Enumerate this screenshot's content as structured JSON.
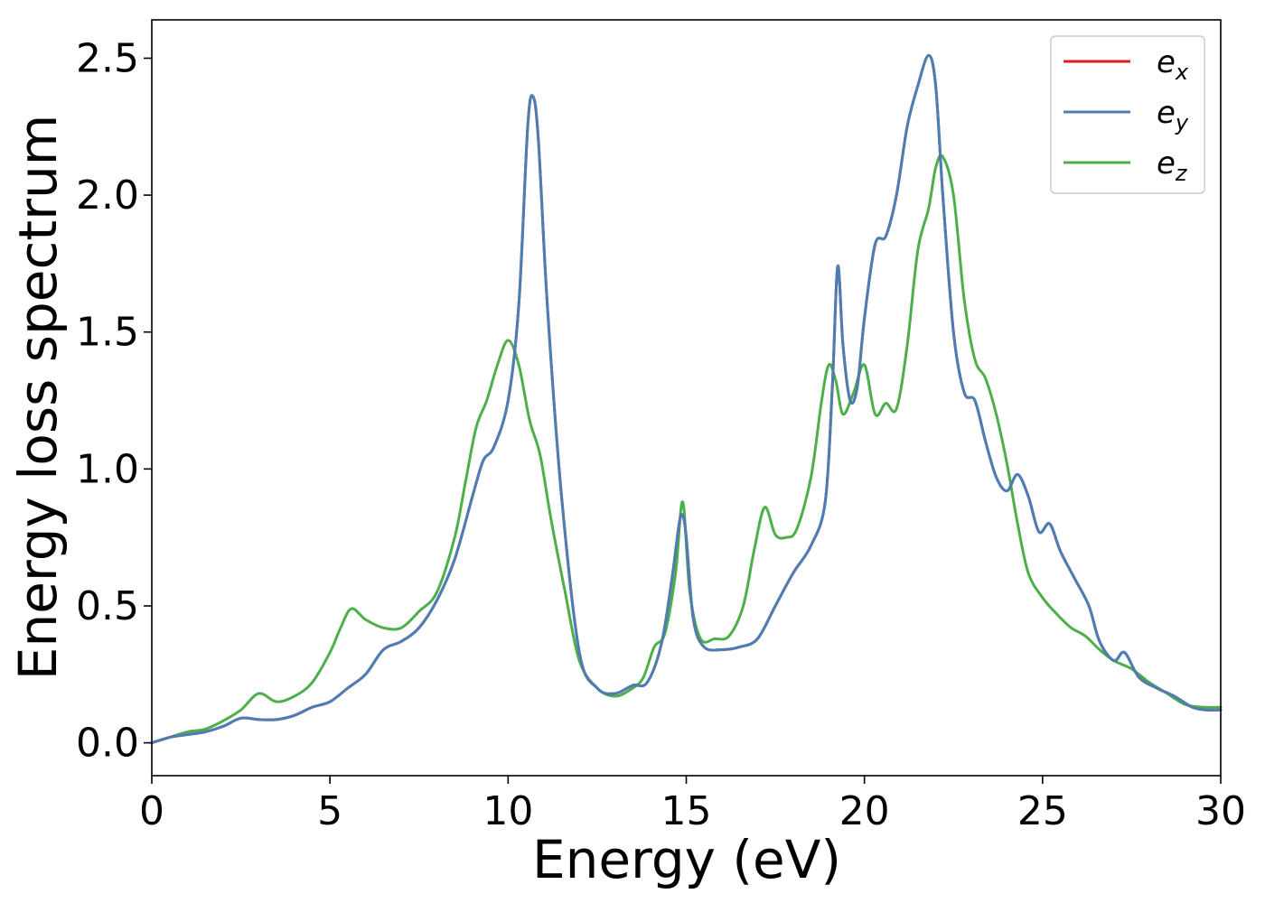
{
  "chart_data": {
    "type": "line",
    "xlabel": "Energy (eV)",
    "ylabel": "Energy loss spectrum",
    "xlim": [
      0,
      30
    ],
    "ylim": [
      -0.12,
      2.64
    ],
    "xticks": [
      0,
      5,
      10,
      15,
      20,
      25,
      30
    ],
    "xtick_labels": [
      "0",
      "5",
      "10",
      "15",
      "20",
      "25",
      "30"
    ],
    "yticks": [
      0.0,
      0.5,
      1.0,
      1.5,
      2.0,
      2.5
    ],
    "ytick_labels": [
      "0.0",
      "0.5",
      "1.0",
      "1.5",
      "2.0",
      "2.5"
    ],
    "grid": false,
    "legend_position": "top-right",
    "series": [
      {
        "name": "e_x",
        "label_base": "e",
        "label_sub": "x",
        "color": "#e41a1c",
        "x": [
          0,
          0.5,
          1.0,
          1.5,
          2.0,
          2.5,
          3.0,
          3.5,
          4.0,
          4.5,
          5.0,
          5.5,
          6.0,
          6.5,
          7.0,
          7.5,
          8.0,
          8.5,
          9.0,
          9.3,
          9.6,
          10.0,
          10.3,
          10.55,
          10.7,
          10.85,
          11.1,
          11.5,
          12.0,
          12.5,
          13.0,
          13.5,
          13.9,
          14.3,
          14.6,
          14.8,
          14.9,
          15.0,
          15.2,
          15.5,
          16.0,
          16.5,
          17.0,
          17.5,
          18.0,
          18.5,
          18.9,
          19.1,
          19.25,
          19.4,
          19.6,
          19.8,
          20.0,
          20.3,
          20.6,
          20.9,
          21.2,
          21.5,
          21.8,
          22.0,
          22.2,
          22.5,
          22.8,
          23.1,
          23.4,
          23.7,
          24.0,
          24.3,
          24.6,
          24.9,
          25.2,
          25.5,
          25.9,
          26.3,
          26.6,
          27.0,
          27.3,
          27.7,
          28.2,
          28.7,
          29.2,
          29.6,
          30.0
        ],
        "y": [
          0.0,
          0.02,
          0.03,
          0.04,
          0.06,
          0.09,
          0.085,
          0.085,
          0.1,
          0.13,
          0.15,
          0.2,
          0.25,
          0.34,
          0.37,
          0.42,
          0.52,
          0.67,
          0.9,
          1.03,
          1.08,
          1.25,
          1.6,
          2.25,
          2.36,
          2.2,
          1.6,
          0.9,
          0.33,
          0.2,
          0.18,
          0.21,
          0.22,
          0.36,
          0.6,
          0.8,
          0.83,
          0.75,
          0.45,
          0.35,
          0.34,
          0.35,
          0.38,
          0.5,
          0.62,
          0.72,
          0.88,
          1.3,
          1.74,
          1.45,
          1.25,
          1.3,
          1.55,
          1.82,
          1.85,
          2.0,
          2.25,
          2.4,
          2.51,
          2.4,
          2.0,
          1.5,
          1.28,
          1.25,
          1.1,
          0.97,
          0.92,
          0.98,
          0.9,
          0.77,
          0.8,
          0.7,
          0.6,
          0.5,
          0.37,
          0.3,
          0.33,
          0.24,
          0.2,
          0.17,
          0.13,
          0.12,
          0.12
        ]
      },
      {
        "name": "e_y",
        "label_base": "e",
        "label_sub": "y",
        "color": "#4a7fb5",
        "x": [
          0,
          0.5,
          1.0,
          1.5,
          2.0,
          2.5,
          3.0,
          3.5,
          4.0,
          4.5,
          5.0,
          5.5,
          6.0,
          6.5,
          7.0,
          7.5,
          8.0,
          8.5,
          9.0,
          9.3,
          9.6,
          10.0,
          10.3,
          10.55,
          10.7,
          10.85,
          11.1,
          11.5,
          12.0,
          12.5,
          13.0,
          13.5,
          13.9,
          14.3,
          14.6,
          14.8,
          14.9,
          15.0,
          15.2,
          15.5,
          16.0,
          16.5,
          17.0,
          17.5,
          18.0,
          18.5,
          18.9,
          19.1,
          19.25,
          19.4,
          19.6,
          19.8,
          20.0,
          20.3,
          20.6,
          20.9,
          21.2,
          21.5,
          21.8,
          22.0,
          22.2,
          22.5,
          22.8,
          23.1,
          23.4,
          23.7,
          24.0,
          24.3,
          24.6,
          24.9,
          25.2,
          25.5,
          25.9,
          26.3,
          26.6,
          27.0,
          27.3,
          27.7,
          28.2,
          28.7,
          29.2,
          29.6,
          30.0
        ],
        "y": [
          0.0,
          0.02,
          0.03,
          0.04,
          0.06,
          0.09,
          0.085,
          0.085,
          0.1,
          0.13,
          0.15,
          0.2,
          0.25,
          0.34,
          0.37,
          0.42,
          0.52,
          0.67,
          0.9,
          1.03,
          1.08,
          1.25,
          1.6,
          2.25,
          2.36,
          2.2,
          1.6,
          0.9,
          0.33,
          0.2,
          0.18,
          0.21,
          0.22,
          0.36,
          0.6,
          0.8,
          0.83,
          0.75,
          0.45,
          0.35,
          0.34,
          0.35,
          0.38,
          0.5,
          0.62,
          0.72,
          0.88,
          1.3,
          1.74,
          1.45,
          1.25,
          1.3,
          1.55,
          1.82,
          1.85,
          2.0,
          2.25,
          2.4,
          2.51,
          2.4,
          2.0,
          1.5,
          1.28,
          1.25,
          1.1,
          0.97,
          0.92,
          0.98,
          0.9,
          0.77,
          0.8,
          0.7,
          0.6,
          0.5,
          0.37,
          0.3,
          0.33,
          0.24,
          0.2,
          0.17,
          0.13,
          0.12,
          0.12
        ]
      },
      {
        "name": "e_z",
        "label_base": "e",
        "label_sub": "z",
        "color": "#4daf4a",
        "x": [
          0,
          0.5,
          1.0,
          1.5,
          2.0,
          2.5,
          3.0,
          3.5,
          4.0,
          4.5,
          5.0,
          5.3,
          5.6,
          6.0,
          6.5,
          7.0,
          7.5,
          8.0,
          8.5,
          8.8,
          9.1,
          9.4,
          9.7,
          10.0,
          10.3,
          10.6,
          10.9,
          11.2,
          11.6,
          12.0,
          12.5,
          13.0,
          13.5,
          13.8,
          14.1,
          14.4,
          14.7,
          14.9,
          15.1,
          15.4,
          15.8,
          16.2,
          16.6,
          16.9,
          17.2,
          17.5,
          17.8,
          18.1,
          18.5,
          18.8,
          19.0,
          19.2,
          19.4,
          19.7,
          20.0,
          20.3,
          20.6,
          20.9,
          21.2,
          21.5,
          21.8,
          22.0,
          22.2,
          22.5,
          22.8,
          23.1,
          23.4,
          23.7,
          24.0,
          24.3,
          24.6,
          25.0,
          25.4,
          25.8,
          26.2,
          26.6,
          27.0,
          27.5,
          28.0,
          28.5,
          29.0,
          29.5,
          30.0
        ],
        "y": [
          0.0,
          0.02,
          0.04,
          0.05,
          0.08,
          0.12,
          0.18,
          0.15,
          0.17,
          0.22,
          0.33,
          0.42,
          0.49,
          0.45,
          0.42,
          0.42,
          0.48,
          0.55,
          0.75,
          0.95,
          1.15,
          1.25,
          1.38,
          1.47,
          1.38,
          1.18,
          1.05,
          0.82,
          0.55,
          0.3,
          0.2,
          0.17,
          0.2,
          0.24,
          0.35,
          0.4,
          0.62,
          0.88,
          0.55,
          0.38,
          0.38,
          0.39,
          0.5,
          0.7,
          0.86,
          0.76,
          0.75,
          0.78,
          0.97,
          1.25,
          1.38,
          1.32,
          1.2,
          1.28,
          1.38,
          1.2,
          1.24,
          1.22,
          1.45,
          1.8,
          1.95,
          2.1,
          2.14,
          2.0,
          1.62,
          1.4,
          1.33,
          1.2,
          1.02,
          0.8,
          0.62,
          0.53,
          0.47,
          0.42,
          0.39,
          0.34,
          0.3,
          0.27,
          0.22,
          0.18,
          0.14,
          0.13,
          0.13
        ]
      }
    ]
  }
}
